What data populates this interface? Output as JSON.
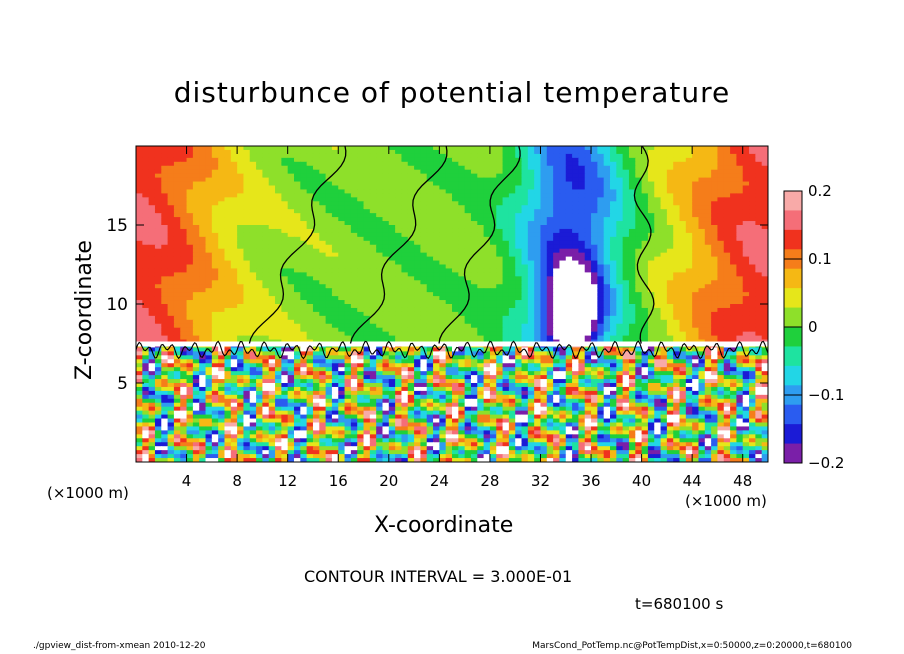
{
  "title": "disturbunce of potential temperature",
  "footer_left": "./gpview_dist-from-xmean  2010-12-20",
  "footer_right": "MarsCond_PotTemp.nc@PotTempDist,x=0:50000,z=0:20000,t=680100",
  "contour_interval": "CONTOUR INTERVAL = 3.000E-01",
  "time_label": "t=680100 s",
  "colors": {
    "palette": [
      "#7a1fa8",
      "#1b1bd6",
      "#2a5cf0",
      "#2e9df0",
      "#22d6e6",
      "#1ee3a0",
      "#1fd03c",
      "#8ee02a",
      "#e6e61a",
      "#f5b814",
      "#f57d1a",
      "#f0321e",
      "#f56e78",
      "#f8aaa8"
    ],
    "contour": "#000000"
  },
  "chart_data": {
    "type": "heatmap",
    "title": "disturbunce of potential temperature",
    "xlabel": "X-coordinate",
    "ylabel": "Z-coordinate",
    "x_unit": "(×1000 m)",
    "z_unit": "(×1000 m)",
    "x_ticks": [
      "4",
      "8",
      "12",
      "16",
      "20",
      "24",
      "28",
      "32",
      "36",
      "40",
      "44",
      "48"
    ],
    "x_tick_values": [
      4,
      8,
      12,
      16,
      20,
      24,
      28,
      32,
      36,
      40,
      44,
      48
    ],
    "z_ticks": [
      "5",
      "10",
      "15"
    ],
    "z_tick_values": [
      5,
      10,
      15
    ],
    "xlim": [
      0,
      50
    ],
    "zlim": [
      0,
      20
    ],
    "colorbar": {
      "ticks": [
        "0.2",
        "0.1",
        "0",
        "−0.1",
        "−0.2"
      ],
      "tick_values": [
        0.2,
        0.1,
        0,
        -0.1,
        -0.2
      ],
      "range": [
        -0.2,
        0.2
      ]
    },
    "features": [
      {
        "x_center": 0,
        "z_low": 7.5,
        "z_high": 20,
        "value": 0.13
      },
      {
        "x_center": 50,
        "z_low": 7.5,
        "z_high": 20,
        "value": 0.13
      },
      {
        "x_center": 34.5,
        "z_low": 7.5,
        "z_high": 19,
        "value": -0.16
      },
      {
        "x_center": 34.5,
        "z_low": 7.5,
        "z_high": 12,
        "value": -0.25
      }
    ],
    "inversion_height": 7.5
  }
}
